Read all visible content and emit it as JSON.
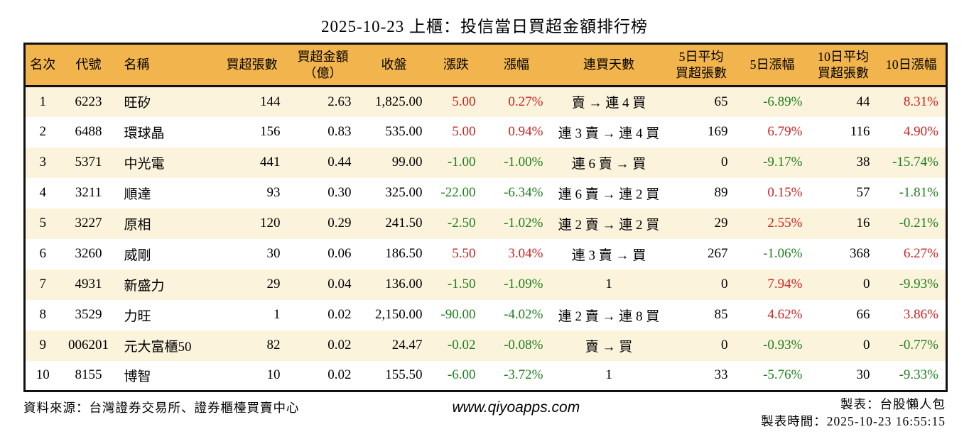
{
  "title": "2025-10-23 上櫃：投信當日買超金額排行榜",
  "colors": {
    "header_bg": "#F2B44C",
    "stripe_bg": "#FCF3DC",
    "positive_red": "#CC2222",
    "negative_green": "#1E7E1E",
    "border": "#111111"
  },
  "table": {
    "headers": {
      "rank": "名次",
      "code": "代號",
      "name": "名稱",
      "lots": "買超張數",
      "amount": "買超金額\n（億）",
      "close": "收盤",
      "change": "漲跌",
      "change_pct": "漲幅",
      "streak": "連買天數",
      "avg5": "5日平均\n買超張數",
      "pct5": "5日漲幅",
      "avg10": "10日平均\n買超張數",
      "pct10": "10日漲幅"
    },
    "rows": [
      {
        "rank": "1",
        "code": "6223",
        "name": "旺矽",
        "lots": "144",
        "amount": "2.63",
        "close": "1,825.00",
        "change": "5.00",
        "change_pct": "0.27%",
        "streak": "賣 → 連 4 買",
        "avg5": "65",
        "pct5": "-6.89%",
        "avg10": "44",
        "pct10": "8.31%"
      },
      {
        "rank": "2",
        "code": "6488",
        "name": "環球晶",
        "lots": "156",
        "amount": "0.83",
        "close": "535.00",
        "change": "5.00",
        "change_pct": "0.94%",
        "streak": "連 3 賣 → 連 4 買",
        "avg5": "169",
        "pct5": "6.79%",
        "avg10": "116",
        "pct10": "4.90%"
      },
      {
        "rank": "3",
        "code": "5371",
        "name": "中光電",
        "lots": "441",
        "amount": "0.44",
        "close": "99.00",
        "change": "-1.00",
        "change_pct": "-1.00%",
        "streak": "連 6 賣 → 買",
        "avg5": "0",
        "pct5": "-9.17%",
        "avg10": "38",
        "pct10": "-15.74%"
      },
      {
        "rank": "4",
        "code": "3211",
        "name": "順達",
        "lots": "93",
        "amount": "0.30",
        "close": "325.00",
        "change": "-22.00",
        "change_pct": "-6.34%",
        "streak": "連 6 賣 → 連 2 買",
        "avg5": "89",
        "pct5": "0.15%",
        "avg10": "57",
        "pct10": "-1.81%"
      },
      {
        "rank": "5",
        "code": "3227",
        "name": "原相",
        "lots": "120",
        "amount": "0.29",
        "close": "241.50",
        "change": "-2.50",
        "change_pct": "-1.02%",
        "streak": "連 2 賣 → 連 2 買",
        "avg5": "29",
        "pct5": "2.55%",
        "avg10": "16",
        "pct10": "-0.21%"
      },
      {
        "rank": "6",
        "code": "3260",
        "name": "威剛",
        "lots": "30",
        "amount": "0.06",
        "close": "186.50",
        "change": "5.50",
        "change_pct": "3.04%",
        "streak": "連 3 賣 → 買",
        "avg5": "267",
        "pct5": "-1.06%",
        "avg10": "368",
        "pct10": "6.27%"
      },
      {
        "rank": "7",
        "code": "4931",
        "name": "新盛力",
        "lots": "29",
        "amount": "0.04",
        "close": "136.00",
        "change": "-1.50",
        "change_pct": "-1.09%",
        "streak": "1",
        "avg5": "0",
        "pct5": "7.94%",
        "avg10": "0",
        "pct10": "-9.93%"
      },
      {
        "rank": "8",
        "code": "3529",
        "name": "力旺",
        "lots": "1",
        "amount": "0.02",
        "close": "2,150.00",
        "change": "-90.00",
        "change_pct": "-4.02%",
        "streak": "連 2 賣 → 連 8 買",
        "avg5": "85",
        "pct5": "4.62%",
        "avg10": "66",
        "pct10": "3.86%"
      },
      {
        "rank": "9",
        "code": "006201",
        "name": "元大富櫃50",
        "lots": "82",
        "amount": "0.02",
        "close": "24.47",
        "change": "-0.02",
        "change_pct": "-0.08%",
        "streak": "賣 → 買",
        "avg5": "0",
        "pct5": "-0.93%",
        "avg10": "0",
        "pct10": "-0.77%"
      },
      {
        "rank": "10",
        "code": "8155",
        "name": "博智",
        "lots": "10",
        "amount": "0.02",
        "close": "155.50",
        "change": "-6.00",
        "change_pct": "-3.72%",
        "streak": "1",
        "avg5": "33",
        "pct5": "-5.76%",
        "avg10": "30",
        "pct10": "-9.33%"
      }
    ]
  },
  "footer": {
    "source": "資料來源：台灣證券交易所、證券櫃檯買賣中心",
    "site": "www.qiyoapps.com",
    "maker": "製表：台股懶人包",
    "made_time": "製表時間：2025-10-23 16:55:15"
  }
}
